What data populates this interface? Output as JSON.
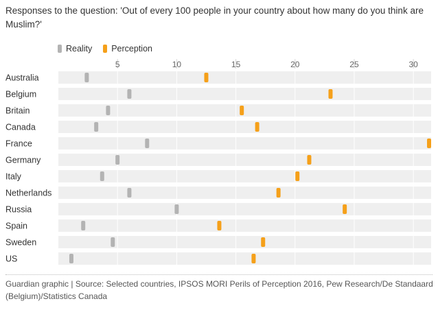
{
  "chart_data": {
    "type": "dot",
    "title": "Responses to the question: 'Out of every 100 people in your country about how many do you think are Muslim?'",
    "xlabel": "",
    "ylabel": "",
    "xlim": [
      0,
      31.5
    ],
    "ticks": [
      5,
      10,
      15,
      20,
      25,
      30
    ],
    "grid": true,
    "legend_position": "top-left",
    "categories": [
      "Australia",
      "Belgium",
      "Britain",
      "Canada",
      "France",
      "Germany",
      "Italy",
      "Netherlands",
      "Russia",
      "Spain",
      "Sweden",
      "US"
    ],
    "series": [
      {
        "name": "Reality",
        "color": "#b3b3b3",
        "values": [
          2.4,
          6.0,
          4.2,
          3.2,
          7.5,
          5.0,
          3.7,
          6.0,
          10.0,
          2.1,
          4.6,
          1.1
        ]
      },
      {
        "name": "Perception",
        "color": "#f5a01a",
        "values": [
          12.5,
          23.0,
          15.5,
          16.8,
          31.5,
          21.2,
          20.2,
          18.6,
          24.2,
          13.6,
          17.3,
          16.5
        ]
      }
    ],
    "source": "Guardian graphic | Source: Selected countries, IPSOS MORI Perils of Perception 2016, Pew Research/De Standaard (Belgium)/Statistics Canada"
  }
}
